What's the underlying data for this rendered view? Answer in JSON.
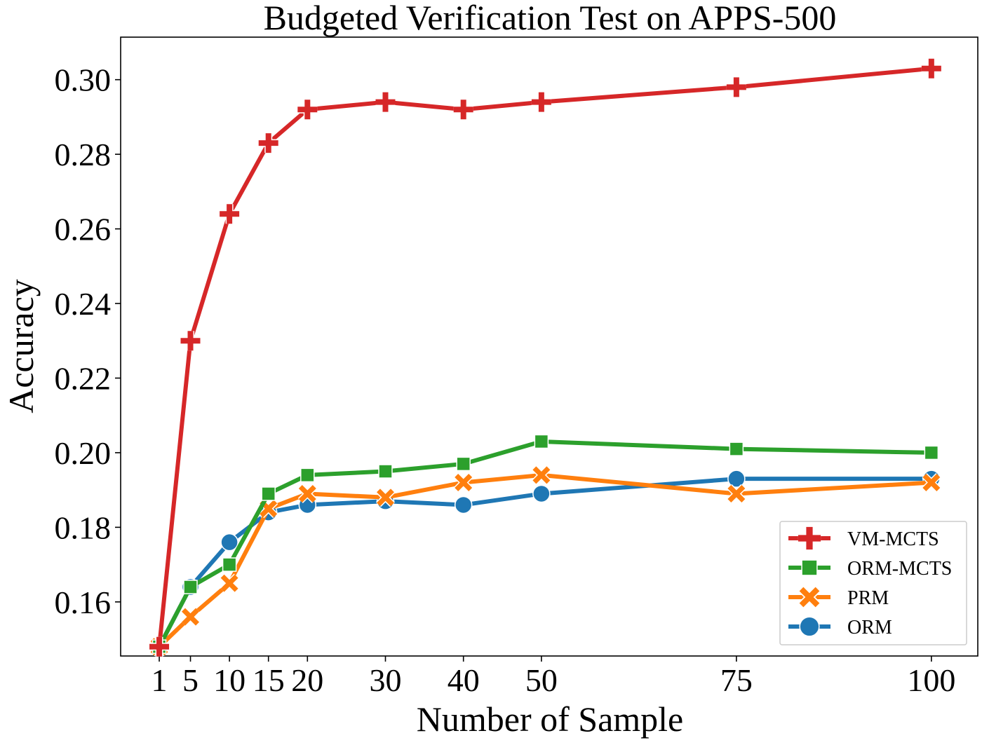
{
  "chart_data": {
    "type": "line",
    "title": "Budgeted Verification Test on APPS-500",
    "xlabel": "Number of Sample",
    "ylabel": "Accuracy",
    "x": [
      1,
      5,
      10,
      15,
      20,
      30,
      40,
      50,
      75,
      100
    ],
    "xticks": [
      1,
      5,
      10,
      15,
      20,
      30,
      40,
      50,
      75,
      100
    ],
    "xtick_labels": [
      "1",
      "5",
      "10",
      "15",
      "20",
      "30",
      "40",
      "50",
      "75",
      "100"
    ],
    "yticks": [
      0.16,
      0.18,
      0.2,
      0.22,
      0.24,
      0.26,
      0.28,
      0.3
    ],
    "ytick_labels": [
      "0.16",
      "0.18",
      "0.20",
      "0.22",
      "0.24",
      "0.26",
      "0.28",
      "0.30"
    ],
    "xlim": [
      -3.95,
      105.95
    ],
    "ylim": [
      0.1455,
      0.3114
    ],
    "grid": false,
    "legend_position": "bottom-right",
    "series": [
      {
        "name": "ORM",
        "color": "#1f77b4",
        "marker": "circle",
        "values": [
          0.148,
          0.164,
          0.176,
          0.184,
          0.186,
          0.187,
          0.186,
          0.189,
          0.193,
          0.193
        ]
      },
      {
        "name": "PRM",
        "color": "#ff7f0e",
        "marker": "x",
        "values": [
          0.148,
          0.156,
          0.165,
          0.185,
          0.189,
          0.188,
          0.192,
          0.194,
          0.189,
          0.192
        ]
      },
      {
        "name": "ORM-MCTS",
        "color": "#2ca02c",
        "marker": "square",
        "values": [
          0.148,
          0.164,
          0.17,
          0.189,
          0.194,
          0.195,
          0.197,
          0.203,
          0.201,
          0.2
        ]
      },
      {
        "name": "VM-MCTS",
        "color": "#d62728",
        "marker": "plus",
        "values": [
          0.148,
          0.23,
          0.264,
          0.283,
          0.292,
          0.294,
          0.292,
          0.294,
          0.298,
          0.303
        ]
      }
    ],
    "legend_order": [
      "VM-MCTS",
      "ORM-MCTS",
      "PRM",
      "ORM"
    ]
  }
}
